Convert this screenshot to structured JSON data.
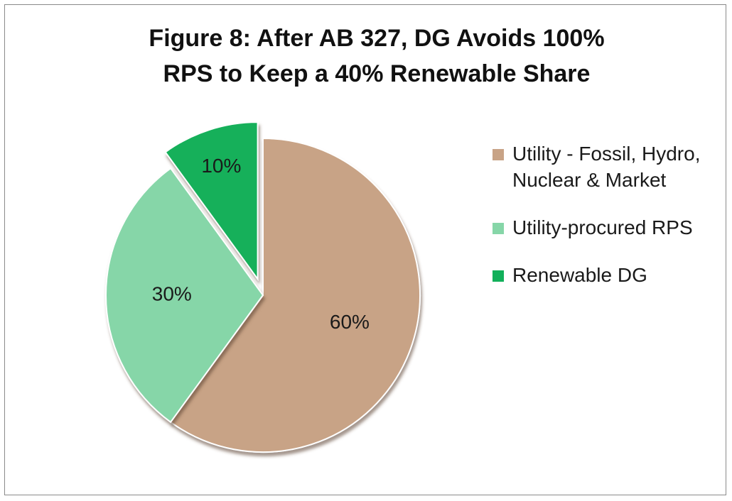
{
  "chart_data": {
    "type": "pie",
    "title": [
      "Figure 8:  After AB 327, DG Avoids 100%",
      "RPS to Keep a 40% Renewable Share"
    ],
    "categories": [
      "Utility - Fossil, Hydro, Nuclear & Market",
      "Utility-procured RPS",
      "Renewable DG"
    ],
    "values": [
      60,
      30,
      10
    ],
    "value_labels": [
      "60%",
      "30%",
      "10%"
    ],
    "colors": [
      "#c8a386",
      "#86d6a8",
      "#12b05a"
    ],
    "exploded": [
      false,
      false,
      true
    ],
    "legend": "right"
  }
}
